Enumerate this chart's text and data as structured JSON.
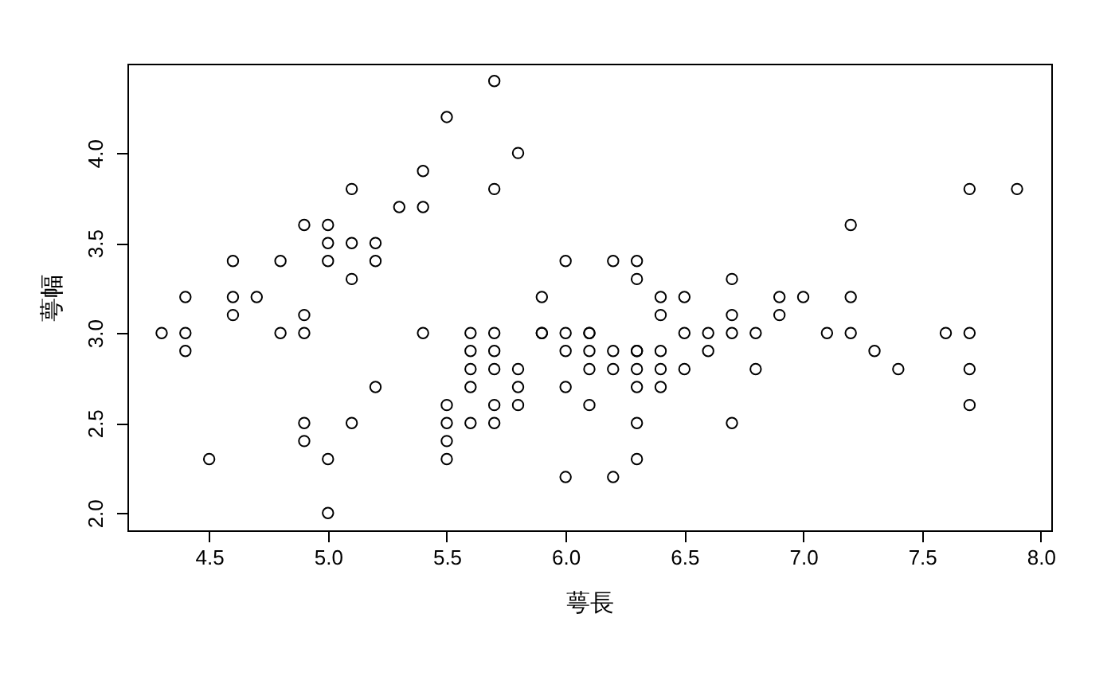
{
  "chart_data": {
    "type": "scatter",
    "xlabel": "萼長",
    "ylabel": "萼幅",
    "marker": "circle",
    "grid": false,
    "xlim": [
      4.156,
      8.044
    ],
    "ylim": [
      1.904,
      4.496
    ],
    "xticks": [
      {
        "value": 4.5,
        "label": "4.5"
      },
      {
        "value": 5,
        "label": "5.0"
      },
      {
        "value": 5.5,
        "label": "5.5"
      },
      {
        "value": 6,
        "label": "6.0"
      },
      {
        "value": 6.5,
        "label": "6.5"
      },
      {
        "value": 7,
        "label": "7.0"
      },
      {
        "value": 7.5,
        "label": "7.5"
      },
      {
        "value": 8,
        "label": "8.0"
      }
    ],
    "yticks": [
      {
        "value": 2,
        "label": "2.0"
      },
      {
        "value": 2.5,
        "label": "2.5"
      },
      {
        "value": 3,
        "label": "3.0"
      },
      {
        "value": 3.5,
        "label": "3.5"
      },
      {
        "value": 4,
        "label": "4.0"
      }
    ],
    "x": [
      5.1,
      4.9,
      4.7,
      4.6,
      5.0,
      5.4,
      4.6,
      5.0,
      4.4,
      4.9,
      5.4,
      4.8,
      4.8,
      4.3,
      5.8,
      5.7,
      5.7,
      5.1,
      5.2,
      5.2,
      5.5,
      4.9,
      4.4,
      4.5,
      4.4,
      5.0,
      4.6,
      5.3,
      7.0,
      6.4,
      6.9,
      5.5,
      6.5,
      5.7,
      6.3,
      4.9,
      6.6,
      5.2,
      5.0,
      5.9,
      6.0,
      6.1,
      5.6,
      6.7,
      5.6,
      5.8,
      6.2,
      5.6,
      5.9,
      6.1,
      6.3,
      6.4,
      6.6,
      6.8,
      6.7,
      6.0,
      5.7,
      5.5,
      6.0,
      5.4,
      6.0,
      6.3,
      5.5,
      5.5,
      6.1,
      5.8,
      5.0,
      5.6,
      5.7,
      5.7,
      6.2,
      5.1,
      5.7,
      6.3,
      7.1,
      6.3,
      6.5,
      7.6,
      4.9,
      7.3,
      6.7,
      7.2,
      6.5,
      6.4,
      6.8,
      5.8,
      7.7,
      7.7,
      6.9,
      5.6,
      7.7,
      6.3,
      6.7,
      7.2,
      6.2,
      6.1,
      6.4,
      7.2,
      7.4,
      7.9,
      6.3,
      6.1,
      7.7,
      6.3,
      6.4,
      6.0,
      6.2,
      5.9,
      5.1
    ],
    "values": [
      3.5,
      3.0,
      3.2,
      3.1,
      3.6,
      3.9,
      3.4,
      3.4,
      2.9,
      3.1,
      3.7,
      3.4,
      3.0,
      3.0,
      4.0,
      4.4,
      3.8,
      3.8,
      3.5,
      3.4,
      4.2,
      3.6,
      3.0,
      2.3,
      3.2,
      3.5,
      3.2,
      3.7,
      3.2,
      3.2,
      3.1,
      2.3,
      2.8,
      2.8,
      3.3,
      2.4,
      2.9,
      2.7,
      2.0,
      3.0,
      2.2,
      2.9,
      2.9,
      3.1,
      3.0,
      2.7,
      2.2,
      2.5,
      3.2,
      2.8,
      2.5,
      2.9,
      3.0,
      2.8,
      3.0,
      2.9,
      2.6,
      2.4,
      2.7,
      3.0,
      3.4,
      2.3,
      2.5,
      2.6,
      3.0,
      2.6,
      2.3,
      2.7,
      3.0,
      2.9,
      2.9,
      2.5,
      2.5,
      2.9,
      3.0,
      2.9,
      3.0,
      3.0,
      2.5,
      2.9,
      2.5,
      3.6,
      3.2,
      2.7,
      3.0,
      2.8,
      3.8,
      2.6,
      3.2,
      2.8,
      2.8,
      2.7,
      3.3,
      3.2,
      2.8,
      3.0,
      2.8,
      3.0,
      2.8,
      3.8,
      2.8,
      2.6,
      3.0,
      3.4,
      3.1,
      3.0,
      3.4,
      3.0,
      3.3
    ],
    "color": "#000000"
  }
}
